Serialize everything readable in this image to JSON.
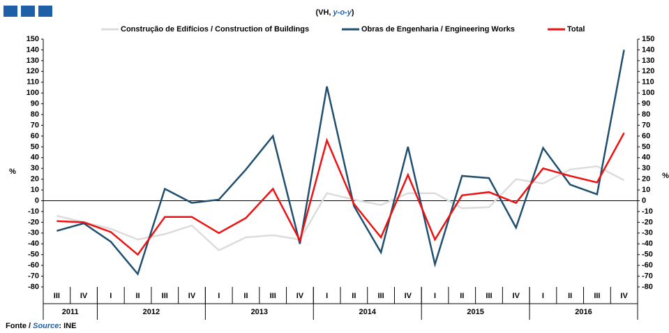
{
  "chart_data": {
    "type": "line",
    "subtitle": [
      "(VH, ",
      "y-o-y",
      ")"
    ],
    "source": [
      "Fonte / ",
      "Source",
      ": INE"
    ],
    "ylabel": "%",
    "y2label": "%",
    "categories": [
      "III",
      "IV",
      "I",
      "II",
      "III",
      "IV",
      "I",
      "II",
      "III",
      "IV",
      "I",
      "II",
      "III",
      "IV",
      "I",
      "II",
      "III",
      "IV",
      "I",
      "II",
      "III",
      "IV"
    ],
    "years": [
      "2011",
      "2012",
      "2013",
      "2014",
      "2015",
      "2016"
    ],
    "series": [
      {
        "name": "Construção de Edifícios / Construction of Buildings",
        "color": "#dcdcdc",
        "values": [
          -14,
          -20,
          -26,
          -36,
          -31,
          -23,
          -46,
          -34,
          -32,
          -36,
          7,
          1,
          -4,
          7,
          7,
          -7,
          -6,
          20,
          16,
          29,
          32,
          19
        ]
      },
      {
        "name": "Obras de Engenharia / Engineering Works",
        "color": "#1f4e6e",
        "values": [
          -28,
          -21,
          -38,
          -68,
          11,
          -2,
          1,
          29,
          60,
          -40,
          106,
          -5,
          -48,
          50,
          -59,
          23,
          21,
          -25,
          49,
          15,
          6,
          140
        ]
      },
      {
        "name": "Total",
        "color": "#ee1111",
        "values": [
          -19,
          -20,
          -29,
          -50,
          -15,
          -15,
          -30,
          -16,
          11,
          -37,
          56,
          -3,
          -34,
          24,
          -36,
          5,
          8,
          -2,
          30,
          23,
          17,
          63
        ]
      }
    ],
    "ylim": [
      -80,
      150
    ],
    "yticks": [
      -80,
      -70,
      -60,
      -50,
      -40,
      -30,
      -20,
      -10,
      0,
      10,
      20,
      30,
      40,
      50,
      60,
      70,
      80,
      90,
      100,
      110,
      120,
      130,
      140,
      150
    ],
    "y2lim": [
      -80,
      150
    ],
    "y2ticks": [
      -80,
      -70,
      -60,
      -50,
      -40,
      -30,
      -20,
      -10,
      0,
      10,
      20,
      30,
      40,
      50,
      60,
      70,
      80,
      90,
      100,
      110,
      120,
      130,
      140,
      150
    ]
  }
}
